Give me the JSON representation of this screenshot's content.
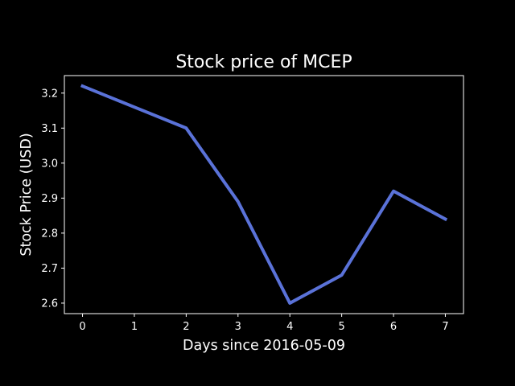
{
  "chart_data": {
    "type": "line",
    "title": "Stock price of MCEP",
    "xlabel": "Days since 2016-05-09",
    "ylabel": "Stock Price (USD)",
    "x": [
      0,
      1,
      2,
      3,
      4,
      5,
      6,
      7
    ],
    "series": [
      {
        "values": [
          3.22,
          3.16,
          3.1,
          2.89,
          2.6,
          2.68,
          2.92,
          2.84
        ],
        "color": "#5a72d8"
      }
    ],
    "xticks": [
      "0",
      "1",
      "2",
      "3",
      "4",
      "5",
      "6",
      "7"
    ],
    "yticks": [
      "2.6",
      "2.7",
      "2.8",
      "2.9",
      "3.0",
      "3.1",
      "3.2"
    ],
    "xlim": [
      -0.35,
      7.35
    ],
    "ylim": [
      2.57,
      3.25
    ],
    "grid": false,
    "background": "#000000",
    "foreground": "#ffffff"
  }
}
